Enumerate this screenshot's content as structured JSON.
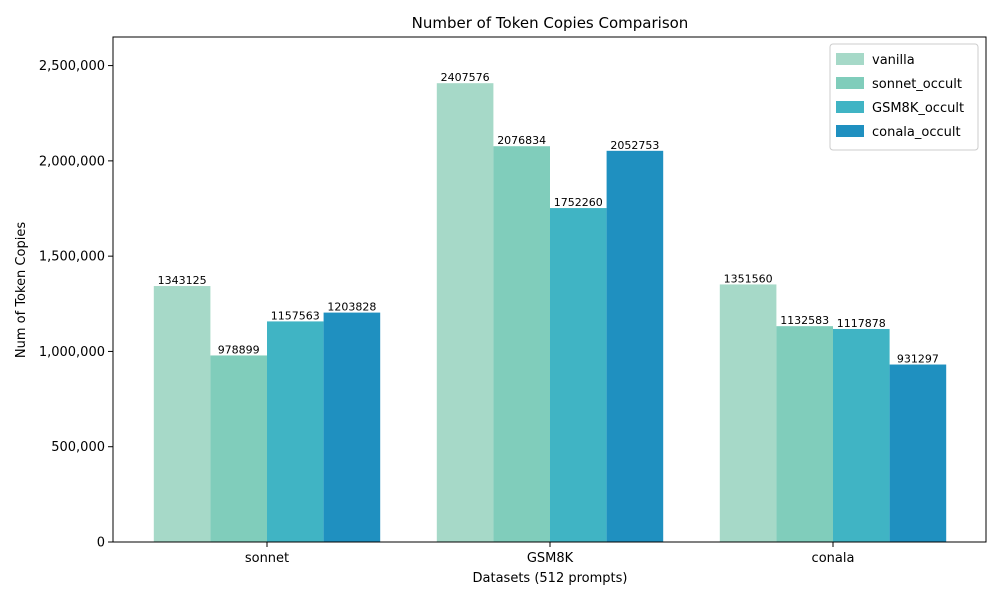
{
  "chart_data": {
    "type": "bar",
    "title": "Number of Token Copies Comparison",
    "xlabel": "Datasets (512 prompts)",
    "ylabel": "Num of Token Copies",
    "categories": [
      "sonnet",
      "GSM8K",
      "conala"
    ],
    "series": [
      {
        "name": "vanilla",
        "color": "#a6d9c8",
        "values": [
          1343125,
          2407576,
          1351560
        ]
      },
      {
        "name": "sonnet_occult",
        "color": "#80cdbb",
        "values": [
          978899,
          2076834,
          1132583
        ]
      },
      {
        "name": "GSM8K_occult",
        "color": "#40b4c4",
        "values": [
          1157563,
          1752260,
          1117878
        ]
      },
      {
        "name": "conala_occult",
        "color": "#1f90c0",
        "values": [
          1203828,
          2052753,
          931297
        ]
      }
    ],
    "ylim": [
      0,
      2650000
    ],
    "yticks": [
      0,
      500000,
      1000000,
      1500000,
      2000000,
      2500000
    ],
    "ytick_labels": [
      "0",
      "500,000",
      "1,000,000",
      "1,500,000",
      "2,000,000",
      "2,500,000"
    ],
    "legend": "top-right",
    "grid": false
  }
}
